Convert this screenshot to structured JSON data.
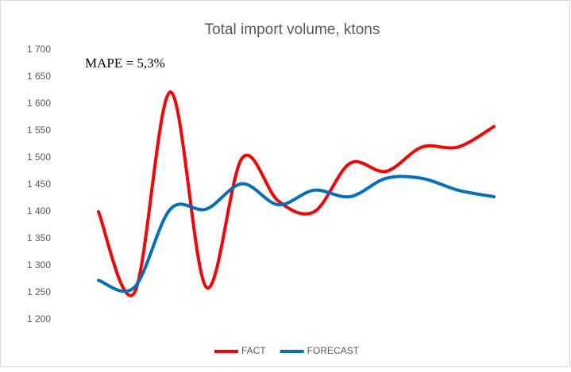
{
  "chart_data": {
    "type": "line",
    "title": "Total import volume, ktons",
    "annotation": "MAPE = 5,3%",
    "categories": [
      null,
      null,
      null,
      null,
      null,
      null,
      null,
      null,
      null,
      null,
      null,
      null
    ],
    "series": [
      {
        "name": "FACT",
        "color": "#ff0000",
        "values": [
          1400,
          1250,
          1622,
          1260,
          1500,
          1420,
          1400,
          1490,
          1475,
          1520,
          1520,
          1558
        ]
      },
      {
        "name": "FORECAST",
        "color": "#0070c0",
        "values": [
          1273,
          1260,
          1405,
          1405,
          1452,
          1413,
          1440,
          1428,
          1462,
          1462,
          1440,
          1428
        ]
      }
    ],
    "ylim": [
      1200,
      1700
    ],
    "yticks": [
      {
        "value": 1200,
        "label": "1 200"
      },
      {
        "value": 1250,
        "label": "1 250"
      },
      {
        "value": 1300,
        "label": "1 300"
      },
      {
        "value": 1350,
        "label": "1 350"
      },
      {
        "value": 1400,
        "label": "1 400"
      },
      {
        "value": 1450,
        "label": "1 450"
      },
      {
        "value": 1500,
        "label": "1 500"
      },
      {
        "value": 1550,
        "label": "1 550"
      },
      {
        "value": 1600,
        "label": "1 600"
      },
      {
        "value": 1650,
        "label": "1 650"
      },
      {
        "value": 1700,
        "label": "1 700"
      }
    ],
    "grid": false,
    "smooth": true,
    "legend": "bottom"
  }
}
